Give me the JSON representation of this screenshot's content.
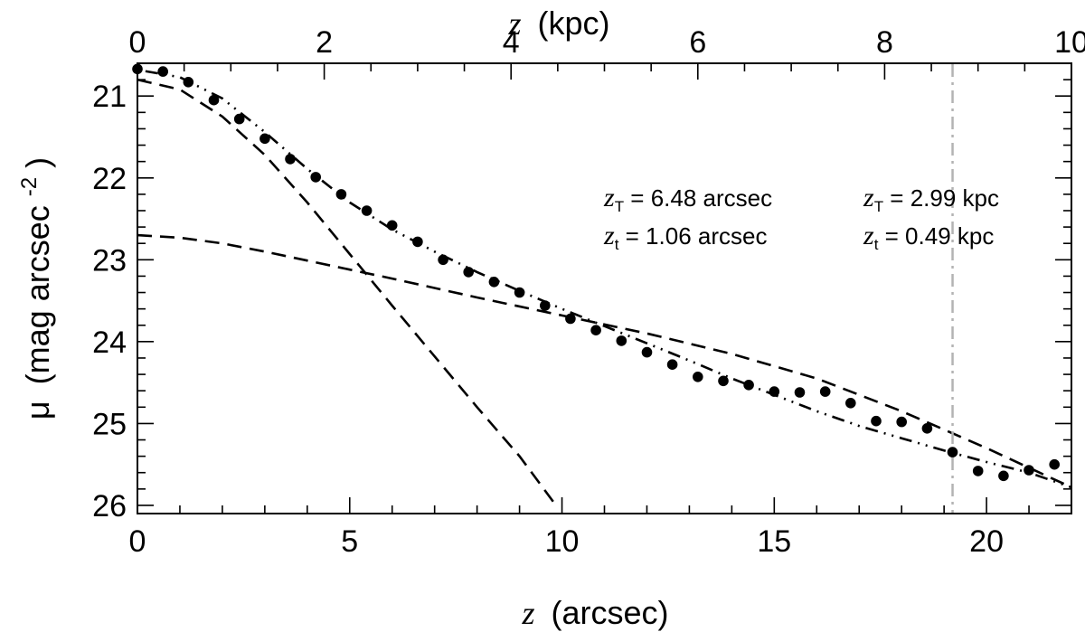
{
  "chart_data": {
    "type": "scatter",
    "xlabel_var": "z",
    "xlabel_unit": "(arcsec)",
    "x2label_var": "z",
    "x2label_unit": "(kpc)",
    "ylabel_var": "μ",
    "ylabel_unit": "(mag arcsec",
    "ylabel_exp": "-2",
    "ylabel_close": ")",
    "xlim": [
      0,
      22
    ],
    "ylim": [
      26.1,
      20.6
    ],
    "x2lim": [
      0,
      10
    ],
    "y_inverted": true,
    "x_ticks": [
      0,
      5,
      10,
      15,
      20
    ],
    "x_tick_labels": [
      "0",
      "5",
      "10",
      "15",
      "20"
    ],
    "x2_ticks": [
      0,
      2,
      4,
      6,
      8,
      10
    ],
    "x2_tick_labels": [
      "0",
      "2",
      "4",
      "6",
      "8",
      "10"
    ],
    "y_ticks": [
      21,
      22,
      23,
      24,
      25,
      26
    ],
    "y_tick_labels": [
      "21",
      "22",
      "23",
      "24",
      "25",
      "26"
    ],
    "grid": false,
    "series": [
      {
        "style": "points",
        "x": [
          0.0,
          0.6,
          1.2,
          1.8,
          2.4,
          3.0,
          3.6,
          4.2,
          4.8,
          5.4,
          6.0,
          6.6,
          7.2,
          7.8,
          8.4,
          9.0,
          9.6,
          10.2,
          10.8,
          11.4,
          12.0,
          12.6,
          13.2,
          13.8,
          14.4,
          15.0,
          15.6,
          16.2,
          16.8,
          17.4,
          18.0,
          18.6,
          19.2,
          19.8,
          20.4,
          21.0,
          21.6
        ],
        "y": [
          20.67,
          20.7,
          20.83,
          21.05,
          21.28,
          21.52,
          21.77,
          21.99,
          22.2,
          22.4,
          22.58,
          22.78,
          23.0,
          23.15,
          23.27,
          23.4,
          23.56,
          23.72,
          23.86,
          23.99,
          24.13,
          24.28,
          24.43,
          24.48,
          24.53,
          24.61,
          24.62,
          24.61,
          24.75,
          24.97,
          24.98,
          25.06,
          25.35,
          25.58,
          25.64,
          25.57,
          25.5
        ]
      },
      {
        "style": "dashed",
        "x": [
          0,
          1,
          2,
          3,
          4,
          5,
          6,
          7,
          8,
          9,
          9.8
        ],
        "y": [
          20.8,
          20.92,
          21.25,
          21.72,
          22.3,
          22.93,
          23.56,
          24.18,
          24.8,
          25.4,
          25.96
        ]
      },
      {
        "style": "dashed",
        "x": [
          0,
          1,
          2,
          3,
          4,
          5,
          6,
          8,
          10,
          12,
          14,
          16,
          18,
          20,
          22
        ],
        "y": [
          22.7,
          22.73,
          22.8,
          22.9,
          23.01,
          23.12,
          23.23,
          23.46,
          23.68,
          23.9,
          24.15,
          24.45,
          24.85,
          25.3,
          25.78
        ]
      },
      {
        "style": "dotdash",
        "x": [
          0,
          1,
          2,
          3,
          4,
          5,
          6,
          7,
          8,
          9,
          10,
          11,
          12,
          13,
          14,
          15,
          16,
          17,
          18,
          19,
          20,
          21,
          22
        ],
        "y": [
          20.68,
          20.77,
          21.03,
          21.44,
          21.89,
          22.3,
          22.63,
          22.9,
          23.15,
          23.38,
          23.6,
          23.81,
          24.02,
          24.23,
          24.45,
          24.65,
          24.85,
          25.03,
          25.18,
          25.33,
          25.47,
          25.6,
          25.78
        ]
      }
    ],
    "vline": {
      "x": 19.2,
      "color": "#b3b3b3",
      "style": "dash-dot"
    },
    "colors": {
      "axes": "#000000",
      "lines": "#000000",
      "points": "#000000"
    },
    "annotations": [
      {
        "var": "z",
        "sub": "T",
        "text": " = 6.48 arcsec"
      },
      {
        "var": "z",
        "sub": "t",
        "text": " = 1.06 arcsec"
      },
      {
        "var": "z",
        "sub": "T",
        "text": " = 2.99 kpc"
      },
      {
        "var": "z",
        "sub": "t",
        "text": " = 0.49 kpc"
      }
    ]
  }
}
